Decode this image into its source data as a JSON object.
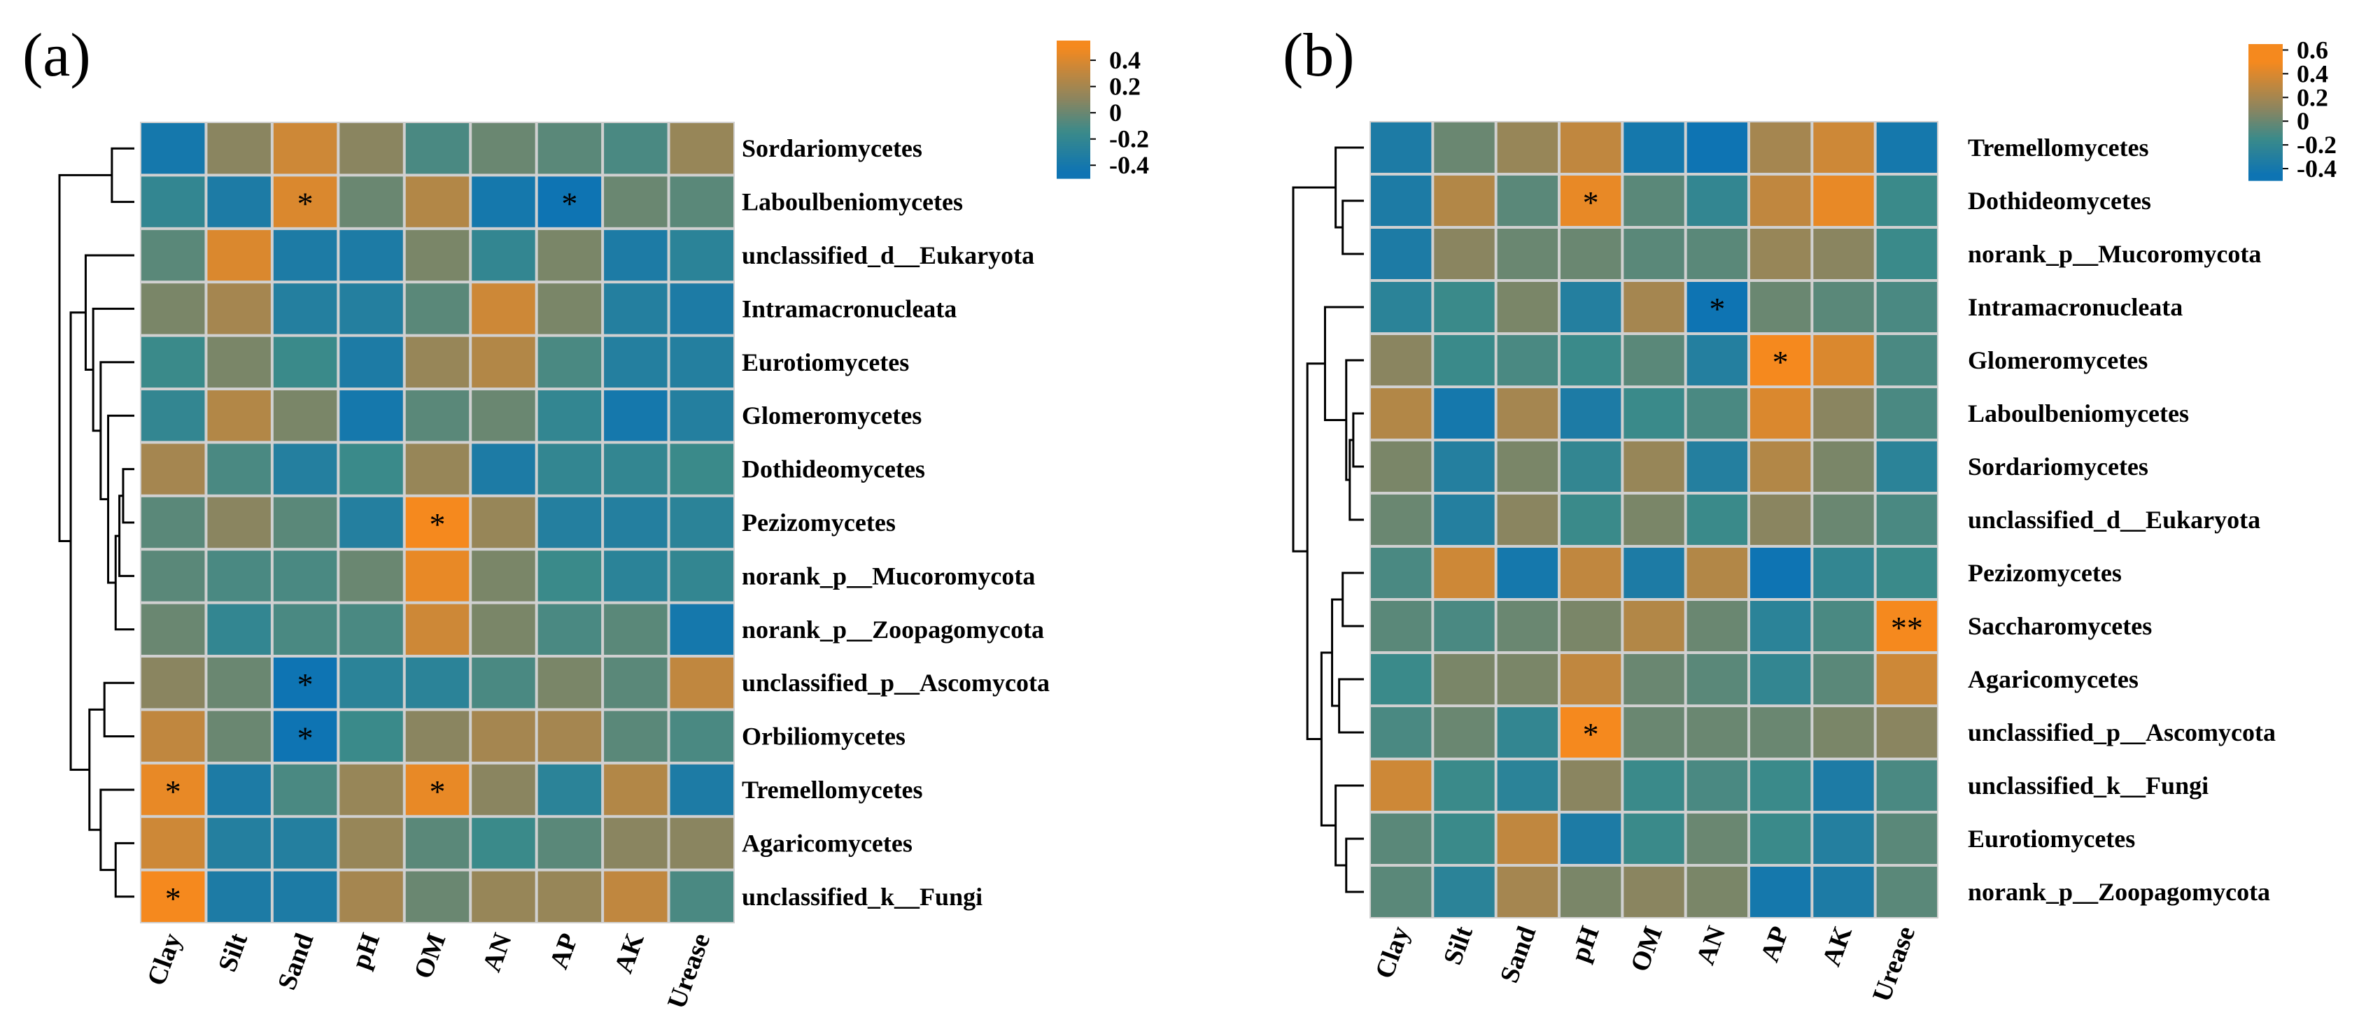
{
  "colors": {
    "low": "#0e74b3",
    "mid": "#3a8a8a",
    "midHigh": "#8a8560",
    "high": "#f5891e",
    "grid": "#d0d0d0",
    "tree": "#000000"
  },
  "chart_data": [
    {
      "type": "heatmap",
      "panel_label": "(a)",
      "columns": [
        "Clay",
        "Silt",
        "Sand",
        "pH",
        "OM",
        "AN",
        "AP",
        "AK",
        "Urease"
      ],
      "rows": [
        "Sordariomycetes",
        "Laboulbeniomycetes",
        "unclassified_d__Eukaryota",
        "Intramacronucleata",
        "Eurotiomycetes",
        "Glomeromycetes",
        "Dothideomycetes",
        "Pezizomycetes",
        "norank_p__Mucoromycota",
        "norank_p__Zoopagomycota",
        "unclassified_p__Ascomycota",
        "Orbiliomycetes",
        "Tremellomycetes",
        "Agaricomycetes",
        "unclassified_k__Fungi"
      ],
      "values": [
        [
          -0.4,
          0.1,
          0.35,
          0.1,
          -0.1,
          0.0,
          -0.05,
          -0.1,
          0.15
        ],
        [
          -0.2,
          -0.35,
          0.4,
          0.0,
          0.25,
          -0.4,
          -0.45,
          0.0,
          -0.05
        ],
        [
          -0.05,
          0.4,
          -0.35,
          -0.35,
          0.05,
          -0.2,
          0.05,
          -0.35,
          -0.25
        ],
        [
          0.05,
          0.2,
          -0.3,
          -0.3,
          -0.05,
          0.35,
          0.05,
          -0.3,
          -0.35
        ],
        [
          -0.15,
          0.05,
          -0.15,
          -0.35,
          0.15,
          0.25,
          -0.1,
          -0.3,
          -0.3
        ],
        [
          -0.2,
          0.25,
          0.05,
          -0.4,
          -0.05,
          0.0,
          -0.2,
          -0.4,
          -0.3
        ],
        [
          0.2,
          -0.1,
          -0.3,
          -0.15,
          0.15,
          -0.35,
          -0.2,
          -0.2,
          -0.15
        ],
        [
          -0.05,
          0.1,
          -0.05,
          -0.3,
          0.5,
          0.15,
          -0.3,
          -0.3,
          -0.25
        ],
        [
          -0.05,
          -0.1,
          -0.1,
          0.0,
          0.45,
          0.05,
          -0.15,
          -0.25,
          -0.2
        ],
        [
          0.0,
          -0.2,
          -0.1,
          -0.1,
          0.35,
          0.05,
          -0.1,
          -0.05,
          -0.4
        ],
        [
          0.1,
          0.0,
          -0.45,
          -0.25,
          -0.25,
          -0.1,
          0.05,
          -0.05,
          0.3
        ],
        [
          0.3,
          0.0,
          -0.45,
          -0.15,
          0.1,
          0.2,
          0.2,
          -0.05,
          -0.1
        ],
        [
          0.45,
          -0.35,
          -0.1,
          0.15,
          0.45,
          0.1,
          -0.25,
          0.25,
          -0.35
        ],
        [
          0.35,
          -0.3,
          -0.3,
          0.15,
          -0.05,
          -0.15,
          -0.05,
          0.1,
          0.1
        ],
        [
          0.55,
          -0.35,
          -0.35,
          0.2,
          0.0,
          0.15,
          0.15,
          0.3,
          -0.1
        ]
      ],
      "significance": [
        [
          "",
          "",
          "",
          "",
          "",
          "",
          "",
          "",
          ""
        ],
        [
          "",
          "",
          "*",
          "",
          "",
          "",
          "*",
          "",
          ""
        ],
        [
          "",
          "",
          "",
          "",
          "",
          "",
          "",
          "",
          ""
        ],
        [
          "",
          "",
          "",
          "",
          "",
          "",
          "",
          "",
          ""
        ],
        [
          "",
          "",
          "",
          "",
          "",
          "",
          "",
          "",
          ""
        ],
        [
          "",
          "",
          "",
          "",
          "",
          "",
          "",
          "",
          ""
        ],
        [
          "",
          "",
          "",
          "",
          "",
          "",
          "",
          "",
          ""
        ],
        [
          "",
          "",
          "",
          "",
          "*",
          "",
          "",
          "",
          ""
        ],
        [
          "",
          "",
          "",
          "",
          "",
          "",
          "",
          "",
          ""
        ],
        [
          "",
          "",
          "",
          "",
          "",
          "",
          "",
          "",
          ""
        ],
        [
          "",
          "",
          "*",
          "",
          "",
          "",
          "",
          "",
          ""
        ],
        [
          "",
          "",
          "*",
          "",
          "",
          "",
          "",
          "",
          ""
        ],
        [
          "*",
          "",
          "",
          "",
          "*",
          "",
          "",
          "",
          ""
        ],
        [
          "",
          "",
          "",
          "",
          "",
          "",
          "",
          "",
          ""
        ],
        [
          "*",
          "",
          "",
          "",
          "",
          "",
          "",
          "",
          ""
        ]
      ],
      "colorbar": {
        "range": [
          -0.5,
          0.55
        ],
        "ticks": [
          0.4,
          0.2,
          0,
          -0.2,
          -0.4
        ],
        "tick_labels": [
          "0.4",
          "0.2",
          "0",
          "-0.2",
          "-0.4"
        ]
      },
      "dendrogram": {
        "merges": [
          [
            0,
            1,
            0.3
          ],
          [
            6,
            7,
            0.15
          ],
          [
            6,
            8,
            0.2
          ],
          [
            6,
            9,
            0.25
          ],
          [
            5,
            6,
            0.35
          ],
          [
            4,
            5,
            0.45
          ],
          [
            3,
            4,
            0.55
          ],
          [
            2,
            3,
            0.65
          ],
          [
            10,
            11,
            0.4
          ],
          [
            13,
            14,
            0.25
          ],
          [
            12,
            13,
            0.45
          ],
          [
            10,
            12,
            0.6
          ],
          [
            2,
            10,
            0.85
          ],
          [
            0,
            2,
            1.0
          ]
        ]
      }
    },
    {
      "type": "heatmap",
      "panel_label": "(b)",
      "columns": [
        "Clay",
        "Silt",
        "Sand",
        "pH",
        "OM",
        "AN",
        "AP",
        "AK",
        "Urease"
      ],
      "rows": [
        "Tremellomycetes",
        "Dothideomycetes",
        "norank_p__Mucoromycota",
        "Intramacronucleata",
        "Glomeromycetes",
        "Laboulbeniomycetes",
        "Sordariomycetes",
        "unclassified_d__Eukaryota",
        "Pezizomycetes",
        "Saccharomycetes",
        "Agaricomycetes",
        "unclassified_p__Ascomycota",
        "unclassified_k__Fungi",
        "Eurotiomycetes",
        "norank_p__Zoopagomycota"
      ],
      "values": [
        [
          -0.35,
          0.0,
          0.15,
          0.3,
          -0.4,
          -0.45,
          0.2,
          0.35,
          -0.4
        ],
        [
          -0.35,
          0.25,
          -0.05,
          0.45,
          -0.05,
          -0.2,
          0.3,
          0.45,
          -0.15
        ],
        [
          -0.35,
          0.1,
          0.0,
          0.0,
          -0.05,
          -0.05,
          0.15,
          0.1,
          -0.15
        ],
        [
          -0.25,
          -0.15,
          0.05,
          -0.3,
          0.2,
          -0.5,
          0.0,
          -0.05,
          -0.1
        ],
        [
          0.1,
          -0.15,
          -0.1,
          -0.15,
          -0.05,
          -0.3,
          0.55,
          0.4,
          -0.1
        ],
        [
          0.25,
          -0.4,
          0.2,
          -0.35,
          -0.15,
          -0.1,
          0.4,
          0.1,
          -0.1
        ],
        [
          0.05,
          -0.3,
          0.05,
          -0.2,
          0.15,
          -0.3,
          0.25,
          0.05,
          -0.25
        ],
        [
          0.0,
          -0.3,
          0.1,
          -0.15,
          0.05,
          -0.15,
          0.1,
          0.0,
          -0.1
        ],
        [
          -0.1,
          0.35,
          -0.4,
          0.3,
          -0.35,
          0.25,
          -0.45,
          -0.2,
          -0.15
        ],
        [
          -0.05,
          -0.1,
          0.0,
          0.05,
          0.25,
          0.0,
          -0.25,
          -0.1,
          0.65
        ],
        [
          -0.15,
          0.05,
          0.05,
          0.3,
          0.0,
          -0.05,
          -0.2,
          -0.05,
          0.35
        ],
        [
          -0.1,
          0.0,
          -0.2,
          0.6,
          0.0,
          0.0,
          0.0,
          0.05,
          0.1
        ],
        [
          0.35,
          -0.15,
          -0.25,
          0.1,
          -0.15,
          -0.1,
          -0.15,
          -0.35,
          -0.1
        ],
        [
          -0.05,
          -0.15,
          0.3,
          -0.35,
          -0.15,
          0.0,
          -0.15,
          -0.3,
          -0.05
        ],
        [
          -0.05,
          -0.25,
          0.2,
          0.05,
          0.1,
          0.05,
          -0.4,
          -0.35,
          -0.05
        ]
      ],
      "significance": [
        [
          "",
          "",
          "",
          "",
          "",
          "",
          "",
          "",
          ""
        ],
        [
          "",
          "",
          "",
          "*",
          "",
          "",
          "",
          "",
          ""
        ],
        [
          "",
          "",
          "",
          "",
          "",
          "",
          "",
          "",
          ""
        ],
        [
          "",
          "",
          "",
          "",
          "",
          "*",
          "",
          "",
          ""
        ],
        [
          "",
          "",
          "",
          "",
          "",
          "",
          "*",
          "",
          ""
        ],
        [
          "",
          "",
          "",
          "",
          "",
          "",
          "",
          "",
          ""
        ],
        [
          "",
          "",
          "",
          "",
          "",
          "",
          "",
          "",
          ""
        ],
        [
          "",
          "",
          "",
          "",
          "",
          "",
          "",
          "",
          ""
        ],
        [
          "",
          "",
          "",
          "",
          "",
          "",
          "",
          "",
          ""
        ],
        [
          "",
          "",
          "",
          "",
          "",
          "",
          "",
          "",
          "**"
        ],
        [
          "",
          "",
          "",
          "",
          "",
          "",
          "",
          "",
          ""
        ],
        [
          "",
          "",
          "",
          "*",
          "",
          "",
          "",
          "",
          ""
        ],
        [
          "",
          "",
          "",
          "",
          "",
          "",
          "",
          "",
          ""
        ],
        [
          "",
          "",
          "",
          "",
          "",
          "",
          "",
          "",
          ""
        ],
        [
          "",
          "",
          "",
          "",
          "",
          "",
          "",
          "",
          ""
        ]
      ],
      "colorbar": {
        "range": [
          -0.5,
          0.65
        ],
        "ticks": [
          0.6,
          0.4,
          0.2,
          0,
          -0.2,
          -0.4
        ],
        "tick_labels": [
          "0.6",
          "0.4",
          "0.2",
          "0",
          "-0.2",
          "-0.4"
        ]
      },
      "dendrogram": {
        "merges": [
          [
            1,
            2,
            0.3
          ],
          [
            0,
            1,
            0.4
          ],
          [
            5,
            6,
            0.15
          ],
          [
            5,
            7,
            0.2
          ],
          [
            4,
            5,
            0.25
          ],
          [
            3,
            4,
            0.55
          ],
          [
            8,
            9,
            0.3
          ],
          [
            10,
            11,
            0.35
          ],
          [
            8,
            10,
            0.45
          ],
          [
            13,
            14,
            0.25
          ],
          [
            12,
            13,
            0.4
          ],
          [
            8,
            12,
            0.6
          ],
          [
            3,
            8,
            0.8
          ],
          [
            0,
            3,
            1.0
          ]
        ]
      }
    }
  ]
}
